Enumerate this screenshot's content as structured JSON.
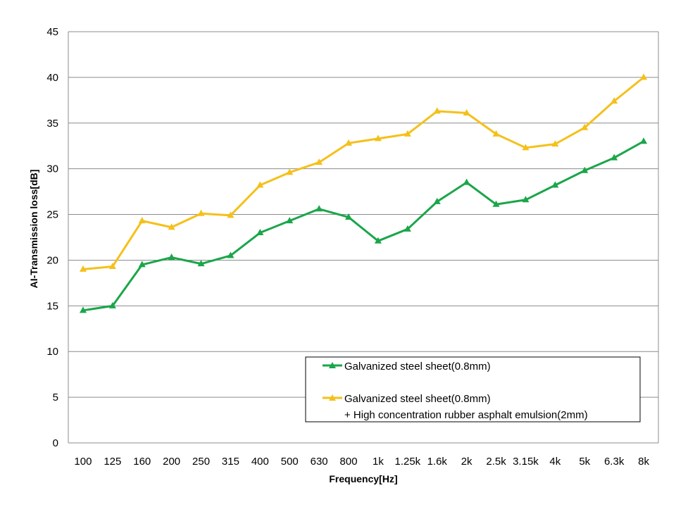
{
  "chart_data": {
    "type": "line",
    "xlabel": "Frequency[Hz]",
    "ylabel": "AI-Transmission loss[dB]",
    "categories": [
      "100",
      "125",
      "160",
      "200",
      "250",
      "315",
      "400",
      "500",
      "630",
      "800",
      "1k",
      "1.25k",
      "1.6k",
      "2k",
      "2.5k",
      "3.15k",
      "4k",
      "5k",
      "6.3k",
      "8k"
    ],
    "ylim": [
      0,
      45
    ],
    "yticks": [
      0,
      5,
      10,
      15,
      20,
      25,
      30,
      35,
      40,
      45
    ],
    "grid": true,
    "legend_position": "bottom-right",
    "series": [
      {
        "name": "Galvanized steel sheet(0.8mm)",
        "color": "#1aa64a",
        "marker": "triangle",
        "values": [
          14.5,
          15.0,
          19.5,
          20.3,
          19.6,
          20.5,
          23.0,
          24.3,
          25.6,
          24.7,
          22.1,
          23.4,
          26.4,
          28.5,
          26.1,
          26.6,
          28.2,
          29.8,
          31.2,
          33.0
        ]
      },
      {
        "name": "Galvanized steel sheet(0.8mm)",
        "name_line2": "+ High concentration rubber asphalt emulsion(2mm)",
        "color": "#f5c01a",
        "marker": "triangle",
        "values": [
          19.0,
          19.3,
          24.3,
          23.6,
          25.1,
          24.9,
          28.2,
          29.6,
          30.7,
          32.8,
          33.3,
          33.8,
          36.3,
          36.1,
          33.8,
          32.3,
          32.7,
          34.5,
          37.4,
          40.0
        ]
      }
    ]
  }
}
